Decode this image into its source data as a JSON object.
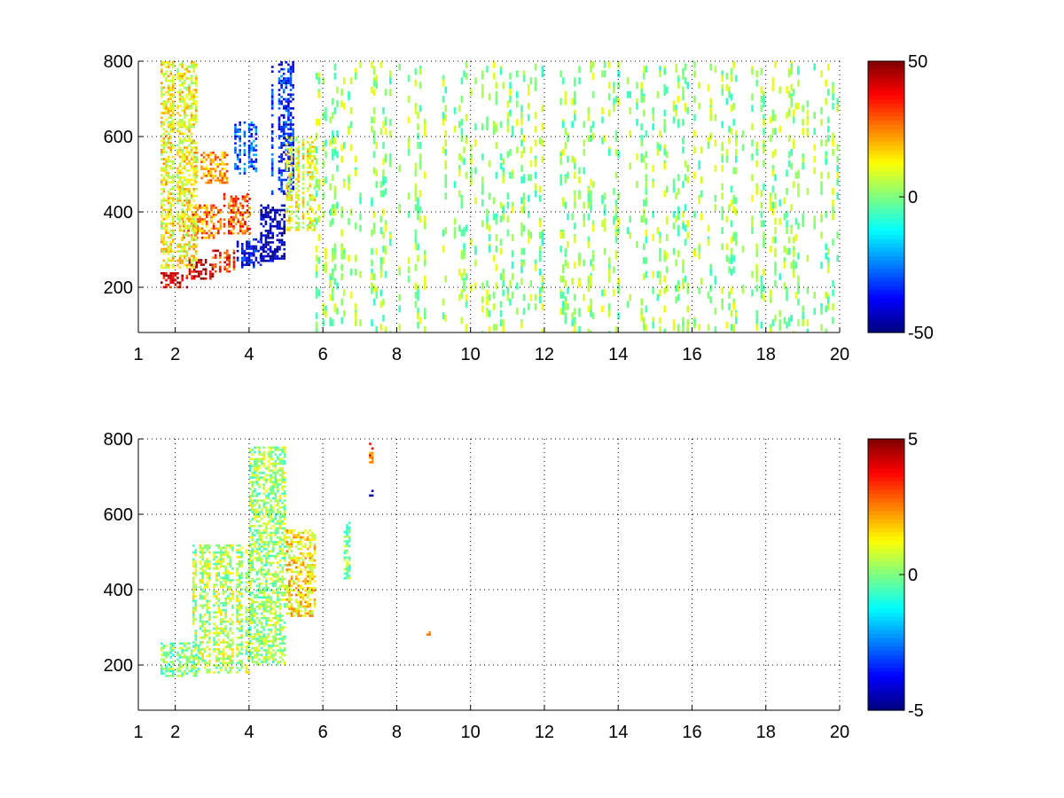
{
  "chart_data": [
    {
      "type": "heatmap",
      "title": "",
      "xlabel": "",
      "ylabel": "",
      "xlim": [
        1,
        20
      ],
      "ylim": [
        80,
        800
      ],
      "xticks": [
        1,
        2,
        4,
        6,
        8,
        10,
        12,
        14,
        16,
        18,
        20
      ],
      "yticks": [
        200,
        400,
        600,
        800
      ],
      "grid": true,
      "colormap": "jet",
      "colorbar": {
        "min": -50,
        "max": 50,
        "ticks": [
          50,
          0,
          -50
        ]
      },
      "regions": [
        {
          "x": [
            1.6,
            2.3
          ],
          "y": [
            200,
            240
          ],
          "value": 40
        },
        {
          "x": [
            2.3,
            3.0
          ],
          "y": [
            225,
            275
          ],
          "value": 45
        },
        {
          "x": [
            3.0,
            3.6
          ],
          "y": [
            240,
            300
          ],
          "value": 35
        },
        {
          "x": [
            3.6,
            4.3
          ],
          "y": [
            255,
            330
          ],
          "value": -40
        },
        {
          "x": [
            4.3,
            5.0
          ],
          "y": [
            270,
            420
          ],
          "value": -45
        },
        {
          "x": [
            2.2,
            3.2
          ],
          "y": [
            330,
            420
          ],
          "value": 25
        },
        {
          "x": [
            3.3,
            4.0
          ],
          "y": [
            340,
            450
          ],
          "value": 30
        },
        {
          "x": [
            2.5,
            3.4
          ],
          "y": [
            480,
            560
          ],
          "value": 22
        },
        {
          "x": [
            3.6,
            4.2
          ],
          "y": [
            500,
            640
          ],
          "value": -30
        },
        {
          "x": [
            4.6,
            5.2
          ],
          "y": [
            450,
            800
          ],
          "value": -35
        },
        {
          "x": [
            1.6,
            2.6
          ],
          "y": [
            250,
            800
          ],
          "value": 12
        },
        {
          "x": [
            5.0,
            5.8
          ],
          "y": [
            350,
            600
          ],
          "value": 10
        },
        {
          "x": [
            5.8,
            20.0
          ],
          "y": [
            80,
            800
          ],
          "value": 2,
          "density": "sparse"
        }
      ]
    },
    {
      "type": "heatmap",
      "title": "",
      "xlabel": "",
      "ylabel": "",
      "xlim": [
        1,
        20
      ],
      "ylim": [
        80,
        800
      ],
      "xticks": [
        1,
        2,
        4,
        6,
        8,
        10,
        12,
        14,
        16,
        18,
        20
      ],
      "yticks": [
        200,
        400,
        600,
        800
      ],
      "grid": true,
      "colormap": "jet",
      "colorbar": {
        "min": -5,
        "max": 5,
        "ticks": [
          5,
          0,
          -5
        ]
      },
      "regions": [
        {
          "x": [
            1.6,
            2.6
          ],
          "y": [
            170,
            260
          ],
          "value": 0
        },
        {
          "x": [
            2.4,
            4.0
          ],
          "y": [
            180,
            520
          ],
          "value": 0.5
        },
        {
          "x": [
            4.0,
            5.0
          ],
          "y": [
            200,
            780
          ],
          "value": 0.3
        },
        {
          "x": [
            5.0,
            5.8
          ],
          "y": [
            330,
            560
          ],
          "value": 1.5
        },
        {
          "x": [
            6.5,
            6.7
          ],
          "y": [
            430,
            580
          ],
          "value": 0
        },
        {
          "x": [
            7.25,
            7.35
          ],
          "y": [
            740,
            790
          ],
          "value": 3
        },
        {
          "x": [
            7.25,
            7.35
          ],
          "y": [
            650,
            665
          ],
          "value": -4
        },
        {
          "x": [
            8.8,
            8.9
          ],
          "y": [
            275,
            290
          ],
          "value": 3
        }
      ]
    }
  ]
}
